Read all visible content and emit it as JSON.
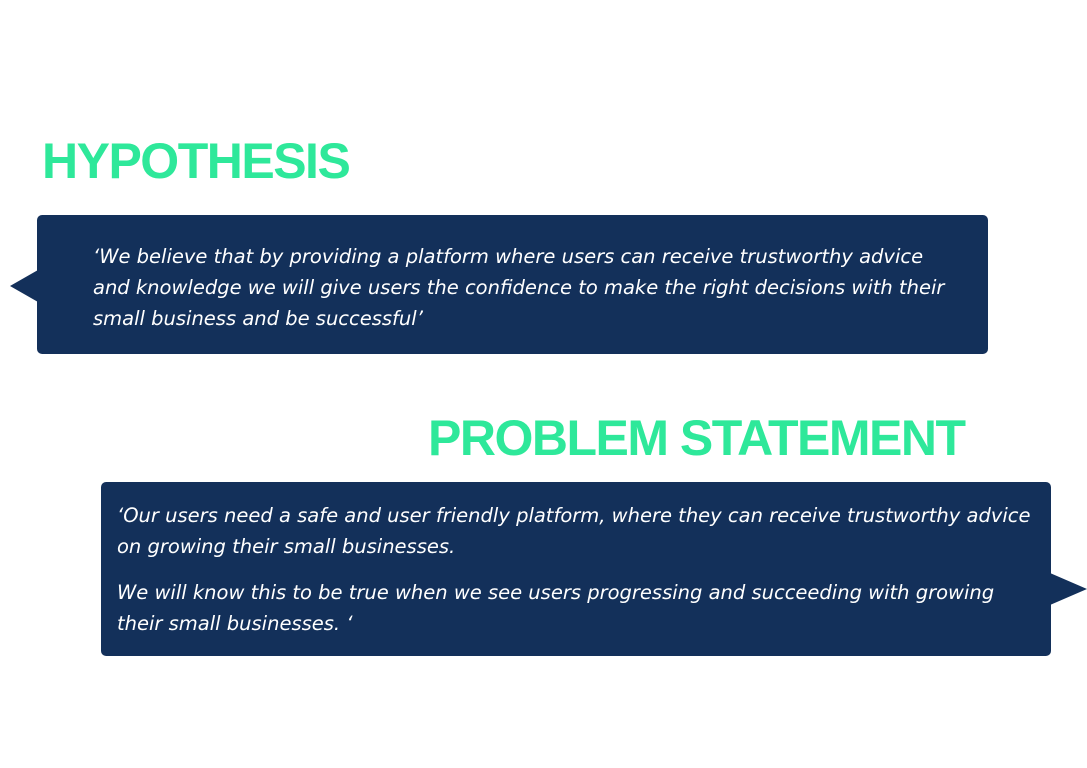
{
  "hypothesis": {
    "title": "HYPOTHESIS",
    "statement": "‘We believe that by providing a platform where users can receive trustworthy advice and knowledge we will give users the confidence to make the right decisions with their small business and be successful’"
  },
  "problem_statement": {
    "title": "PROBLEM STATEMENT",
    "paragraph_1": "‘Our users need a safe and user friendly platform, where they can receive trustworthy advice on growing their small businesses.",
    "paragraph_2": "We will know this to be true when we see users progressing and succeeding with growing their small businesses. ‘"
  },
  "colors": {
    "heading": "#2ee89a",
    "bubble": "#13305a",
    "text": "#ffffff"
  }
}
